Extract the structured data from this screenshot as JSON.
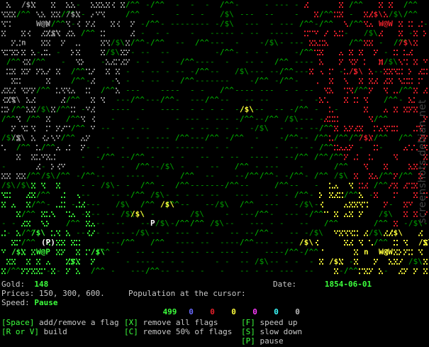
{
  "map": {
    "columns": 86,
    "rows": 29,
    "kingdoms": [
      {
        "name": "grey",
        "color": "#9a9a9a",
        "corner": "top-left",
        "castle": "W@W",
        "lord": "n"
      },
      {
        "name": "red",
        "color": "#e8202a",
        "corner": "top-right",
        "castle": "W@W",
        "lord": "n"
      },
      {
        "name": "green",
        "color": "#3cff3c",
        "corner": "bottom-left",
        "castle": "W@P",
        "lord": "(P)"
      },
      {
        "name": "yellow",
        "color": "#ffff3c",
        "corner": "bottom-right",
        "castle": "W@W",
        "lord": "n"
      }
    ],
    "terrain": {
      "grass": "-",
      "mountain": "/^^",
      "gold": "/$\\",
      "peasant": "P"
    },
    "colors": {
      "grass": "#00a000",
      "mountain": "#00c000",
      "gold": "#00a000"
    }
  },
  "hud": {
    "gold_label": "Gold:",
    "gold_value": "148",
    "prices_text": "Prices: 150, 300, 600.",
    "speed_label": "Speed:",
    "speed_value": "Pause",
    "population_label": "Population at the cursor:",
    "date_label": "Date:",
    "date_value": "1854-06-01",
    "population": [
      {
        "value": "499",
        "color": "#3cff3c"
      },
      {
        "value": "0",
        "color": "#6a6aff"
      },
      {
        "value": "0",
        "color": "#e8202a"
      },
      {
        "value": "0",
        "color": "#ffff3c"
      },
      {
        "value": "0",
        "color": "#ff3cff"
      },
      {
        "value": "0",
        "color": "#3cffff"
      },
      {
        "value": "0",
        "color": "#b8b8b8"
      }
    ]
  },
  "help": {
    "space_key": "[Space]",
    "space_text": " add/remove a flag",
    "rv_key": "[R or V]",
    "rv_text": " build",
    "x_key": "[X]",
    "x_text": " remove all flags",
    "c_key": "[C]",
    "c_text": " remove 50% of flags",
    "f_key": "[F]",
    "f_text": " speed up",
    "s_key": "[S]",
    "s_text": " slow down",
    "p_key": "[P]",
    "p_text": " pause"
  },
  "watermark": "screenshots.debian.net"
}
